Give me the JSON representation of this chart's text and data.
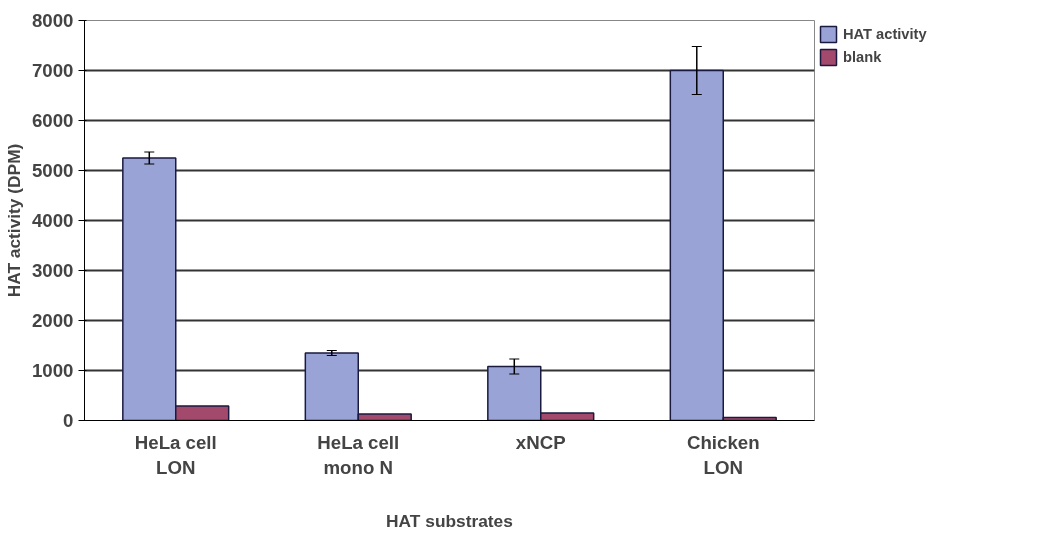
{
  "chart_data": {
    "type": "bar",
    "xlabel": "HAT substrates",
    "ylabel": "HAT activity (DPM)",
    "categories": [
      "HeLa cell\nLON",
      "HeLa cell\nmono N",
      "xNCP",
      "Chicken\nLON"
    ],
    "series": [
      {
        "name": "HAT activity",
        "color": "#99a3d5",
        "values": [
          5250,
          1350,
          1080,
          7000
        ],
        "errors": [
          120,
          50,
          150,
          480
        ]
      },
      {
        "name": "blank",
        "color": "#a3496b",
        "values": [
          290,
          130,
          150,
          60
        ]
      }
    ],
    "ylim": [
      0,
      8000
    ],
    "yticks": [
      0,
      1000,
      2000,
      3000,
      4000,
      5000,
      6000,
      7000,
      8000
    ],
    "grid": "y",
    "legend": "top right"
  }
}
